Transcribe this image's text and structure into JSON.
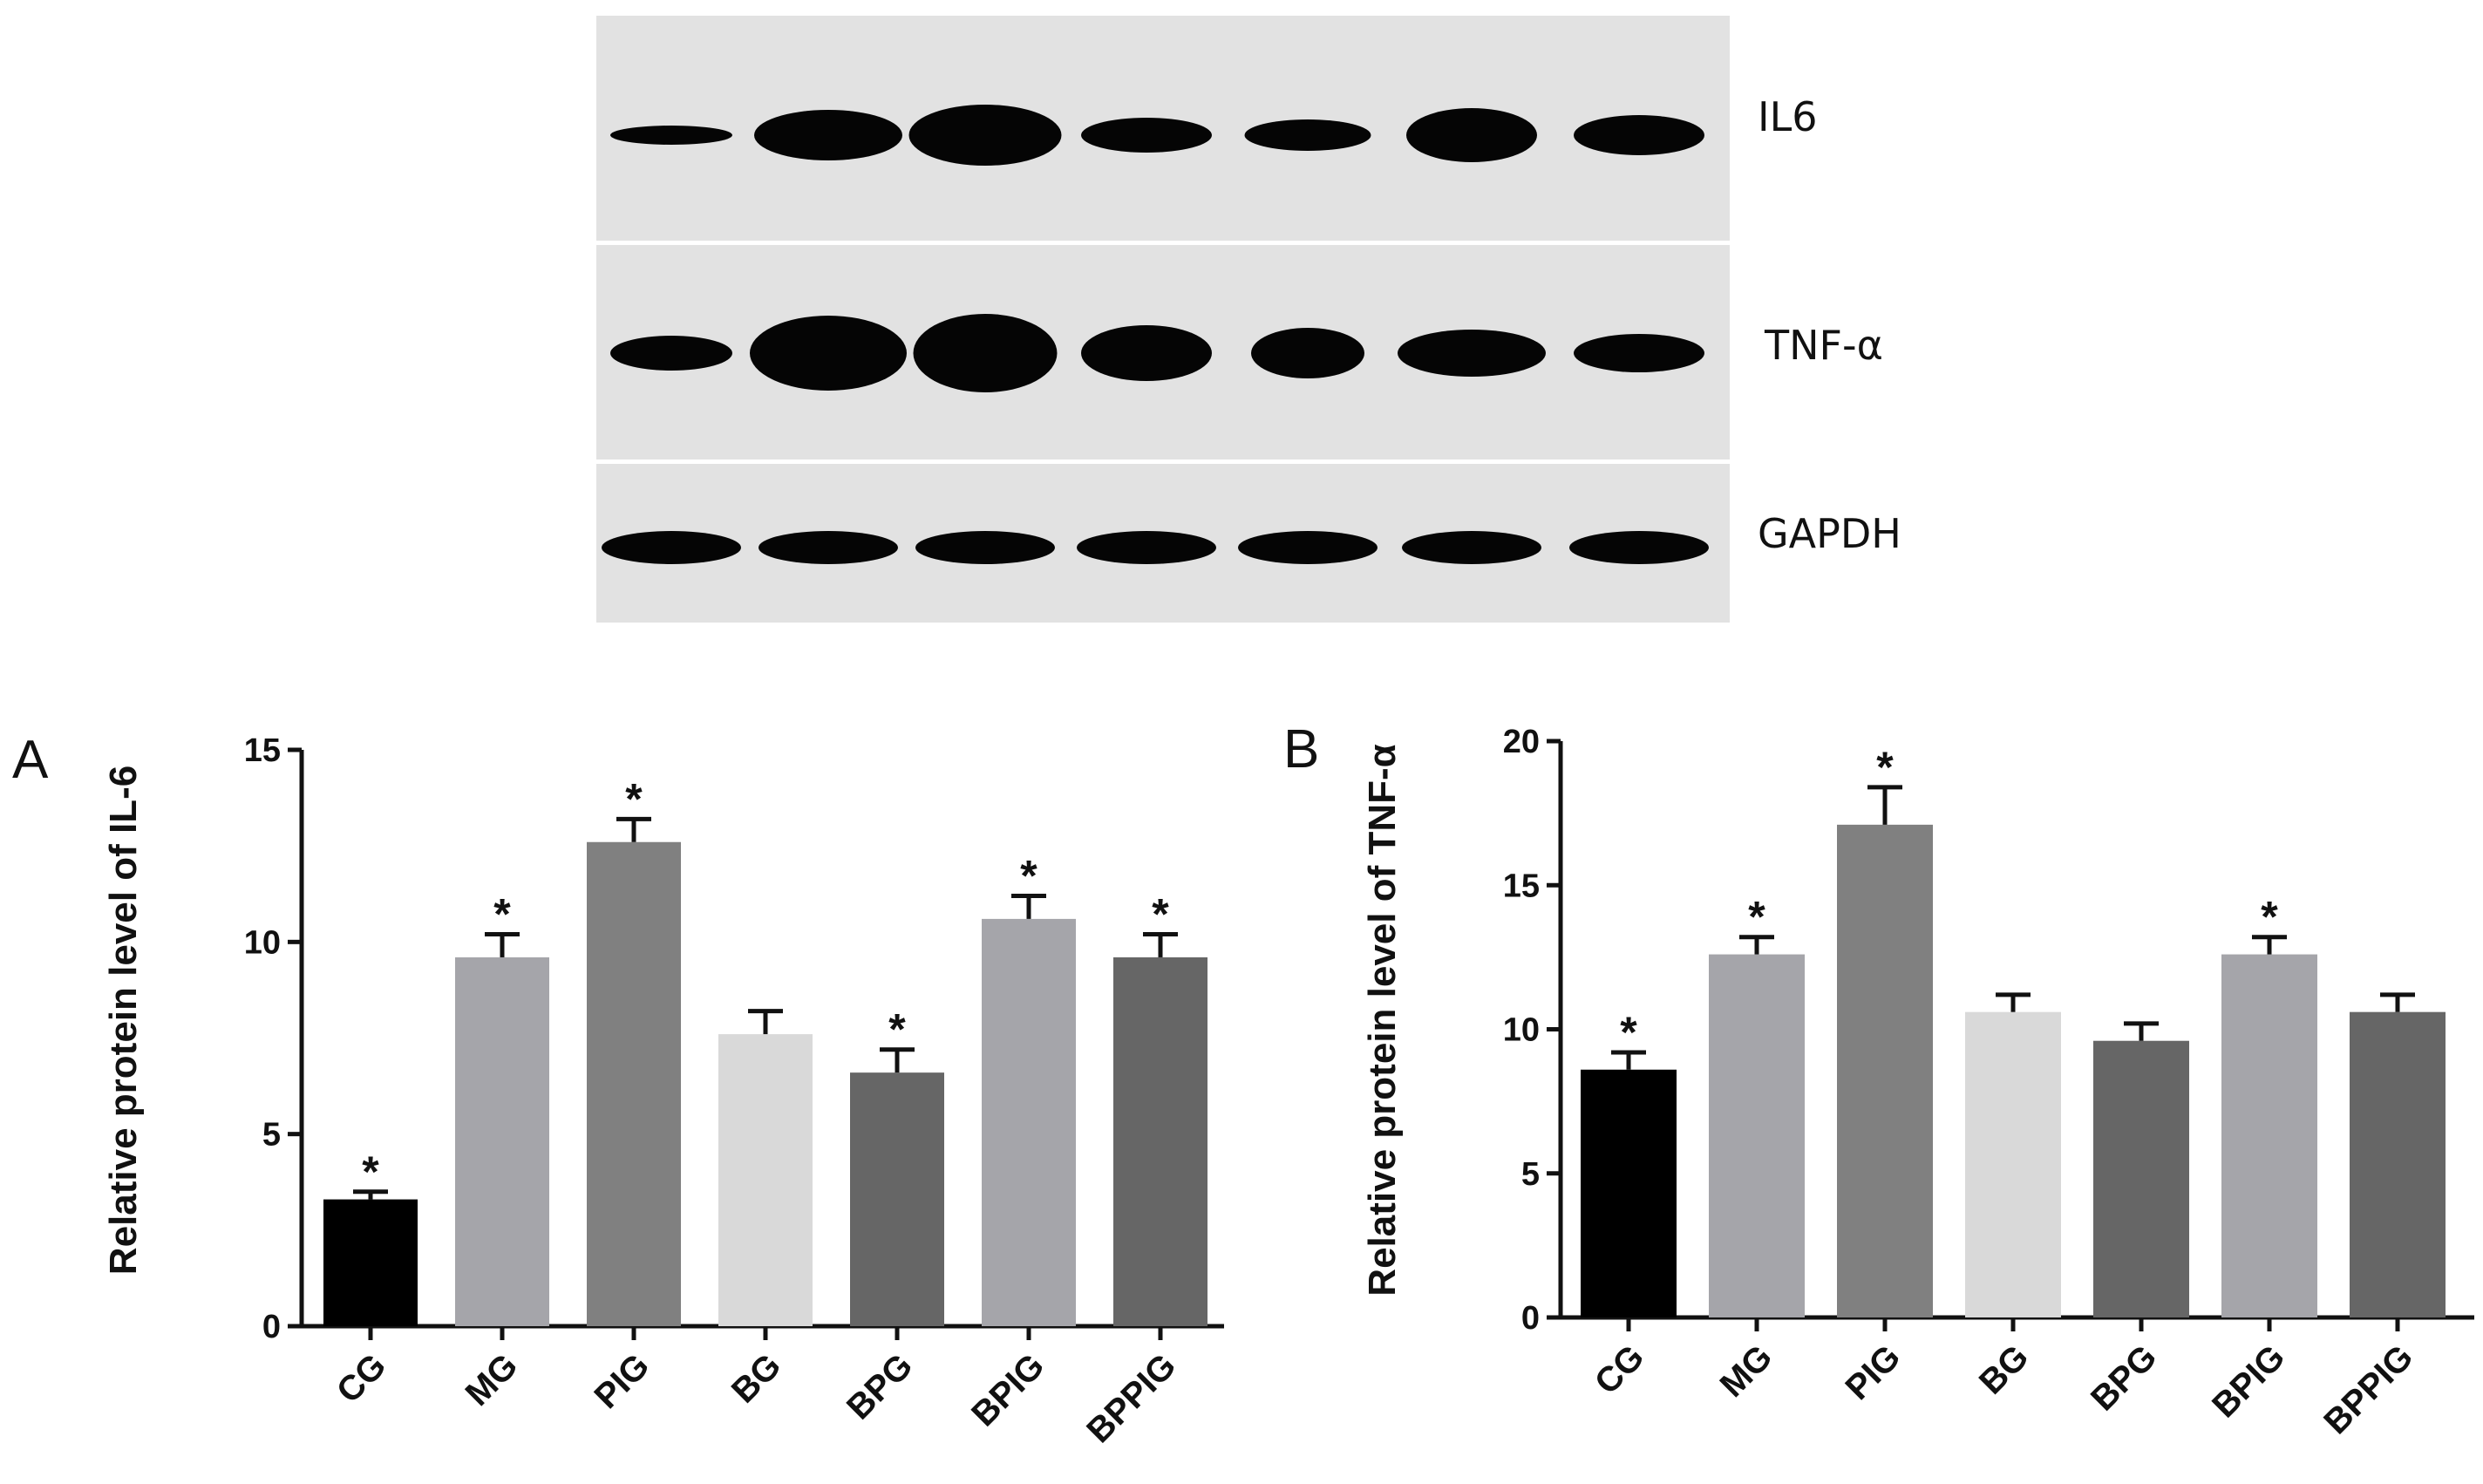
{
  "blot": {
    "labels": [
      "IL6",
      "TNF-α",
      "GAPDH"
    ]
  },
  "chart_data": [
    {
      "type": "bar",
      "panel": "A",
      "ylabel": "Relative protein level of IL-6",
      "ylim": [
        0,
        15
      ],
      "yticks": [
        0,
        5,
        10,
        15
      ],
      "categories": [
        "CG",
        "MG",
        "PIG",
        "BG",
        "BPG",
        "BPIG",
        "BPPIG"
      ],
      "values": [
        3.3,
        9.6,
        12.6,
        7.6,
        6.6,
        10.6,
        9.6
      ],
      "errors": [
        0.2,
        0.6,
        0.6,
        0.6,
        0.6,
        0.6,
        0.6
      ],
      "significant": [
        "*",
        "*",
        "*",
        "",
        "*",
        "*",
        "*"
      ],
      "colors": [
        "#000000",
        "#a5a5aa",
        "#808080",
        "#d9d9d9",
        "#666666",
        "#a5a5aa",
        "#666666"
      ]
    },
    {
      "type": "bar",
      "panel": "B",
      "ylabel": "Relative protein level of TNF-α",
      "ylim": [
        0,
        20
      ],
      "yticks": [
        0,
        5,
        10,
        15,
        20
      ],
      "categories": [
        "CG",
        "MG",
        "PIG",
        "BG",
        "BPG",
        "BPIG",
        "BPPIG"
      ],
      "values": [
        8.6,
        12.6,
        17.1,
        10.6,
        9.6,
        12.6,
        10.6
      ],
      "errors": [
        0.6,
        0.6,
        1.3,
        0.6,
        0.6,
        0.6,
        0.6
      ],
      "significant": [
        "*",
        "*",
        "*",
        "",
        "",
        "*",
        ""
      ],
      "colors": [
        "#000000",
        "#a5a5aa",
        "#808080",
        "#d9d9d9",
        "#666666",
        "#a5a5aa",
        "#666666"
      ]
    }
  ]
}
